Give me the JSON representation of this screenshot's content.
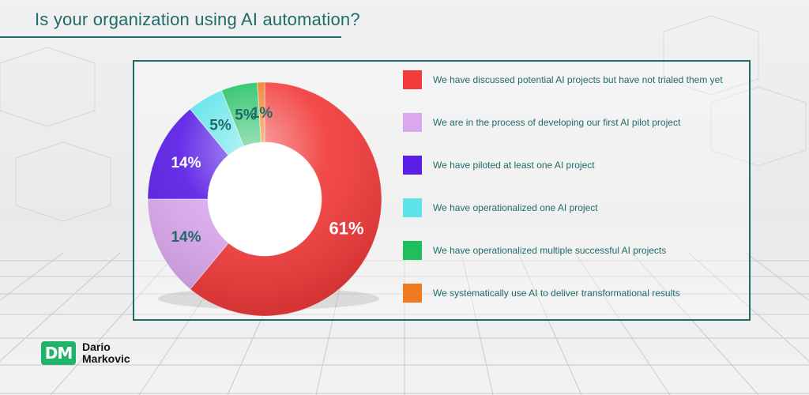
{
  "header": {
    "title": "Is your organization using AI automation?"
  },
  "brand": {
    "badge": "DM",
    "first_name": "Dario",
    "last_name": "Markovic"
  },
  "chart_data": {
    "type": "pie",
    "variant": "donut",
    "categories": [
      "We have discussed potential AI projects but have not trialed them yet",
      "We are in the process of developing our first AI pilot project",
      "We have piloted at least one AI project",
      "We have operationalized one AI project",
      "We have operationalized multiple successful AI projects",
      "We systematically use AI to deliver transformational results"
    ],
    "values": [
      61,
      14,
      14,
      5,
      5,
      1
    ],
    "labels": [
      "61%",
      "14%",
      "14%",
      "5%",
      "5%",
      "1%"
    ],
    "colors": [
      "#f23b3b",
      "#dba8ee",
      "#5a1ee6",
      "#5ee3ea",
      "#1fbf60",
      "#f07a1f"
    ],
    "legend_position": "right"
  }
}
